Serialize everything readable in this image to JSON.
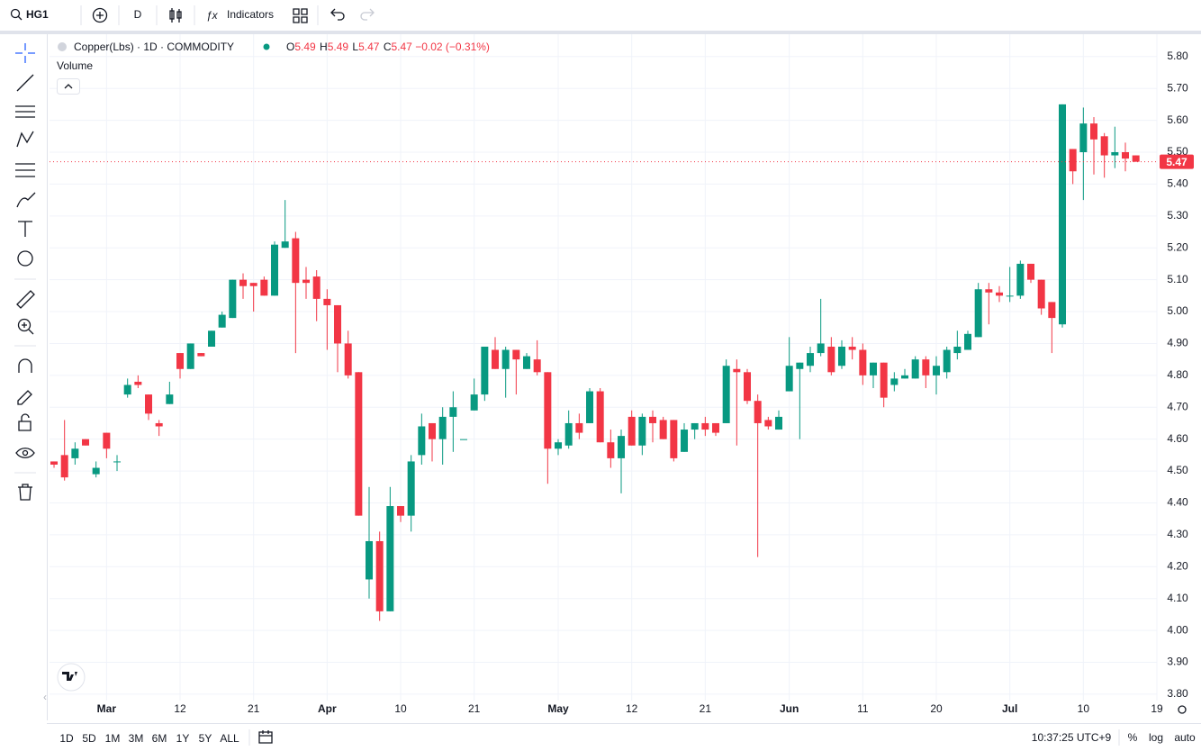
{
  "toolbar": {
    "symbol": "HG1",
    "interval": "D",
    "indicators": "Indicators"
  },
  "chart_data": {
    "type": "candlestick",
    "title": "Copper(Lbs) · 1D · COMMODITY",
    "legend_labels": [
      "O",
      "H",
      "L",
      "C"
    ],
    "change": "−0.02",
    "change_pct": "(−0.31%)",
    "indicator": "Volume",
    "open": [
      4.53,
      4.55,
      4.54,
      4.6,
      4.49,
      4.62,
      4.53,
      4.74,
      4.78,
      4.74,
      4.65,
      4.71,
      4.87,
      4.82,
      4.87,
      4.89,
      4.95,
      4.98,
      5.1,
      5.09,
      5.1,
      5.05,
      5.2,
      5.23,
      5.1,
      5.11,
      5.04,
      5.02,
      4.9,
      4.81,
      4.16,
      4.28,
      4.06,
      4.39,
      4.36,
      4.55,
      4.65,
      4.6,
      4.67,
      4.6,
      4.69,
      4.74,
      4.88,
      4.82,
      4.88,
      4.82,
      4.85,
      4.81,
      4.57,
      4.58,
      4.65,
      4.65,
      4.75,
      4.59,
      4.54,
      4.67,
      4.58,
      4.67,
      4.66,
      4.66,
      4.56,
      4.63,
      4.65,
      4.65,
      4.65,
      4.82,
      4.81,
      4.72,
      4.66,
      4.63,
      4.75,
      4.82,
      4.83,
      4.87,
      4.89,
      4.83,
      4.89,
      4.88,
      4.8,
      4.84,
      4.77,
      4.79,
      4.79,
      4.85,
      4.8,
      4.81,
      4.87,
      4.88,
      4.92,
      5.07,
      5.06,
      5.05,
      5.05,
      5.15,
      5.1,
      5.03,
      4.96,
      5.51,
      5.5,
      5.59,
      5.55,
      5.49,
      5.5,
      5.49
    ],
    "high": [
      4.53,
      4.66,
      4.59,
      4.6,
      4.53,
      4.62,
      4.55,
      4.79,
      4.8,
      4.74,
      4.66,
      4.78,
      4.87,
      4.9,
      4.87,
      4.94,
      5.0,
      5.1,
      5.12,
      5.09,
      5.11,
      5.22,
      5.35,
      5.25,
      5.14,
      5.13,
      5.07,
      5.02,
      4.94,
      4.81,
      4.45,
      4.31,
      4.45,
      4.39,
      4.55,
      4.68,
      4.65,
      4.7,
      4.75,
      4.6,
      4.79,
      4.89,
      4.92,
      4.89,
      4.88,
      4.87,
      4.91,
      4.81,
      4.6,
      4.69,
      4.68,
      4.76,
      4.76,
      4.63,
      4.63,
      4.69,
      4.68,
      4.69,
      4.67,
      4.66,
      4.65,
      4.65,
      4.67,
      4.65,
      4.85,
      4.85,
      4.82,
      4.74,
      4.67,
      4.69,
      4.92,
      4.84,
      4.89,
      5.04,
      4.92,
      4.91,
      4.92,
      4.9,
      4.84,
      4.84,
      4.81,
      4.82,
      4.86,
      4.86,
      4.86,
      4.89,
      4.94,
      4.94,
      5.09,
      5.09,
      5.08,
      5.14,
      5.16,
      5.15,
      5.1,
      5.03,
      5.65,
      5.51,
      5.64,
      5.61,
      5.56,
      5.58,
      5.53,
      5.49
    ],
    "low": [
      4.51,
      4.47,
      4.52,
      4.58,
      4.48,
      4.54,
      4.5,
      4.73,
      4.76,
      4.66,
      4.61,
      4.71,
      4.79,
      4.82,
      4.86,
      4.89,
      4.95,
      4.98,
      5.04,
      5.0,
      5.05,
      5.05,
      5.2,
      4.87,
      5.04,
      4.97,
      4.88,
      4.81,
      4.79,
      4.36,
      4.1,
      4.03,
      4.06,
      4.34,
      4.31,
      4.52,
      4.53,
      4.52,
      4.56,
      4.6,
      4.69,
      4.72,
      4.82,
      4.73,
      4.74,
      4.82,
      4.8,
      4.46,
      4.55,
      4.57,
      4.6,
      4.65,
      4.59,
      4.51,
      4.43,
      4.58,
      4.55,
      4.59,
      4.6,
      4.53,
      4.56,
      4.6,
      4.61,
      4.61,
      4.65,
      4.58,
      4.71,
      4.23,
      4.63,
      4.63,
      4.75,
      4.6,
      4.81,
      4.86,
      4.8,
      4.82,
      4.85,
      4.77,
      4.76,
      4.7,
      4.75,
      4.79,
      4.79,
      4.76,
      4.74,
      4.79,
      4.85,
      4.88,
      4.92,
      4.96,
      5.03,
      5.03,
      5.04,
      5.09,
      4.99,
      4.87,
      4.95,
      5.4,
      5.35,
      5.43,
      5.42,
      5.45,
      5.44,
      5.47
    ],
    "close": [
      4.52,
      4.48,
      4.57,
      4.58,
      4.51,
      4.57,
      4.53,
      4.77,
      4.77,
      4.68,
      4.64,
      4.74,
      4.82,
      4.9,
      4.86,
      4.94,
      4.99,
      5.1,
      5.08,
      5.08,
      5.05,
      5.21,
      5.22,
      5.09,
      5.09,
      5.04,
      5.02,
      4.9,
      4.8,
      4.36,
      4.28,
      4.06,
      4.39,
      4.36,
      4.53,
      4.64,
      4.6,
      4.67,
      4.7,
      4.6,
      4.74,
      4.89,
      4.82,
      4.88,
      4.85,
      4.86,
      4.81,
      4.57,
      4.59,
      4.65,
      4.62,
      4.75,
      4.59,
      4.54,
      4.61,
      4.58,
      4.67,
      4.65,
      4.6,
      4.54,
      4.63,
      4.65,
      4.63,
      4.62,
      4.83,
      4.81,
      4.72,
      4.65,
      4.64,
      4.67,
      4.83,
      4.84,
      4.87,
      4.9,
      4.81,
      4.89,
      4.88,
      4.8,
      4.84,
      4.73,
      4.79,
      4.8,
      4.85,
      4.8,
      4.83,
      4.88,
      4.89,
      4.93,
      5.07,
      5.06,
      5.05,
      5.05,
      5.15,
      5.1,
      5.01,
      4.98,
      5.65,
      5.44,
      5.59,
      5.54,
      5.49,
      5.5,
      5.48,
      5.47
    ],
    "up_color": "#089981",
    "down_color": "#f23645",
    "xlim": [
      -0.43,
      105
    ],
    "xticks": [
      {
        "value": 5,
        "label": "Mar"
      },
      {
        "value": 12,
        "label": "12"
      },
      {
        "value": 19,
        "label": "21"
      },
      {
        "value": 26,
        "label": "Apr"
      },
      {
        "value": 33,
        "label": "10"
      },
      {
        "value": 40,
        "label": "21"
      },
      {
        "value": 48,
        "label": "May"
      },
      {
        "value": 55,
        "label": "12"
      },
      {
        "value": 62,
        "label": "21"
      },
      {
        "value": 70,
        "label": "Jun"
      },
      {
        "value": 77,
        "label": "11"
      },
      {
        "value": 84,
        "label": "20"
      },
      {
        "value": 91,
        "label": "Jul"
      },
      {
        "value": 98,
        "label": "10"
      },
      {
        "value": 105,
        "label": "19"
      }
    ],
    "ylim": [
      3.78,
      5.87
    ],
    "yticks": [
      {
        "value": 5.8,
        "label": "5.80"
      },
      {
        "value": 5.7,
        "label": "5.70"
      },
      {
        "value": 5.6,
        "label": "5.60"
      },
      {
        "value": 5.5,
        "label": "5.50"
      },
      {
        "value": 5.4,
        "label": "5.40"
      },
      {
        "value": 5.3,
        "label": "5.30"
      },
      {
        "value": 5.2,
        "label": "5.20"
      },
      {
        "value": 5.1,
        "label": "5.10"
      },
      {
        "value": 5.0,
        "label": "5.00"
      },
      {
        "value": 4.9,
        "label": "4.90"
      },
      {
        "value": 4.8,
        "label": "4.80"
      },
      {
        "value": 4.7,
        "label": "4.70"
      },
      {
        "value": 4.6,
        "label": "4.60"
      },
      {
        "value": 4.5,
        "label": "4.50"
      },
      {
        "value": 4.4,
        "label": "4.40"
      },
      {
        "value": 4.3,
        "label": "4.30"
      },
      {
        "value": 4.2,
        "label": "4.20"
      },
      {
        "value": 4.1,
        "label": "4.10"
      },
      {
        "value": 4.0,
        "label": "4.00"
      },
      {
        "value": 3.9,
        "label": "3.90"
      },
      {
        "value": 3.8,
        "label": "3.80"
      }
    ],
    "grid": true
  },
  "bottom_bar": {
    "ranges": [
      "1D",
      "5D",
      "1M",
      "3M",
      "6M",
      "1Y",
      "5Y",
      "ALL"
    ],
    "time": "10:37:25 UTC+9",
    "options": [
      "%",
      "log",
      "auto"
    ]
  }
}
